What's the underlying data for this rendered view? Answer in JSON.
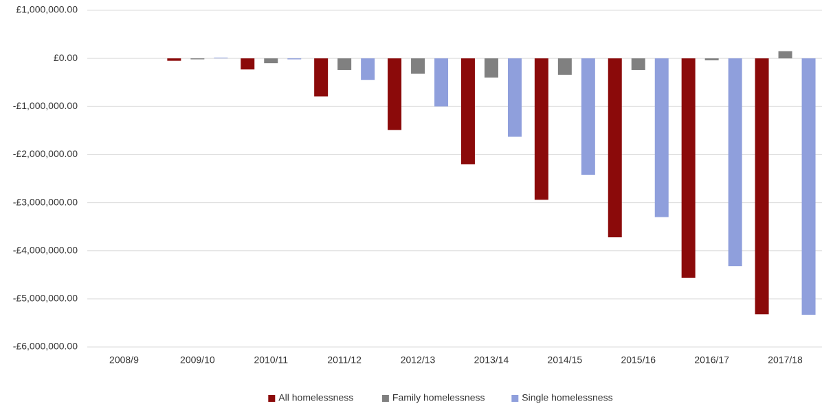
{
  "chart_data": {
    "type": "bar",
    "categories": [
      "2008/9",
      "2009/10",
      "2010/11",
      "2011/12",
      "2012/13",
      "2013/14",
      "2014/15",
      "2015/16",
      "2016/17",
      "2017/18"
    ],
    "series": [
      {
        "name": "All homelessness",
        "color": "#8b0a0a",
        "values": [
          0,
          -50000,
          -230000,
          -790000,
          -1490000,
          -2200000,
          -2940000,
          -3720000,
          -4560000,
          -5320000
        ]
      },
      {
        "name": "Family homelessness",
        "color": "#808080",
        "values": [
          0,
          -20000,
          -100000,
          -240000,
          -320000,
          -400000,
          -340000,
          -240000,
          -40000,
          150000
        ]
      },
      {
        "name": "Single homelessness",
        "color": "#8f9fdc",
        "values": [
          0,
          15000,
          -20000,
          -450000,
          -1000000,
          -1630000,
          -2420000,
          -3300000,
          -4320000,
          -5330000
        ]
      }
    ],
    "ylim": [
      -6000000,
      1000000
    ],
    "yticks": [
      {
        "value": 1000000,
        "label": "£1,000,000.00"
      },
      {
        "value": 0,
        "label": "£0.00"
      },
      {
        "value": -1000000,
        "label": "-£1,000,000.00"
      },
      {
        "value": -2000000,
        "label": "-£2,000,000.00"
      },
      {
        "value": -3000000,
        "label": "-£3,000,000.00"
      },
      {
        "value": -4000000,
        "label": "-£4,000,000.00"
      },
      {
        "value": -5000000,
        "label": "-£5,000,000.00"
      },
      {
        "value": -6000000,
        "label": "-£6,000,000.00"
      }
    ],
    "grid": true,
    "legend": "bottom"
  }
}
